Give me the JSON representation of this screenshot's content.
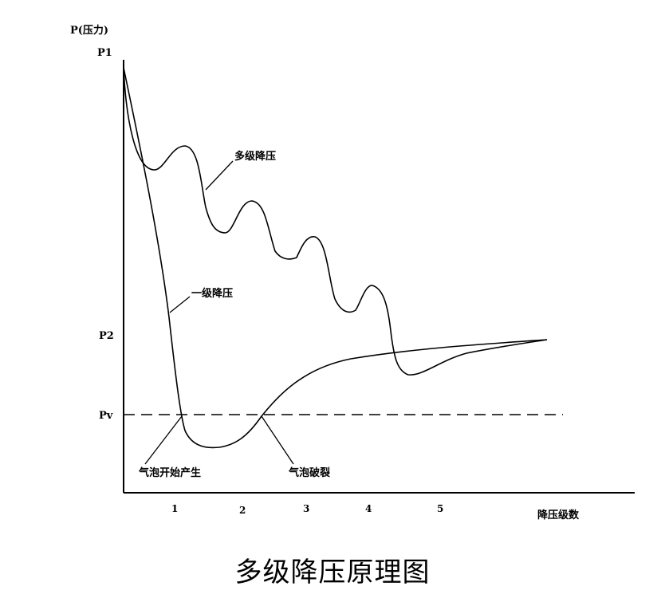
{
  "axes": {
    "y_label": "P(压力)",
    "x_label": "降压级数",
    "y_marks": [
      "P1",
      "P2",
      "Pv"
    ],
    "x_ticks": [
      "1",
      "2",
      "3",
      "4",
      "5"
    ]
  },
  "curves": {
    "multi_stage": "多级降压",
    "single_stage": "一级降压"
  },
  "annotations": {
    "bubble_form": "气泡开始产生",
    "bubble_collapse": "气泡破裂"
  },
  "caption": "多级降压原理图"
}
